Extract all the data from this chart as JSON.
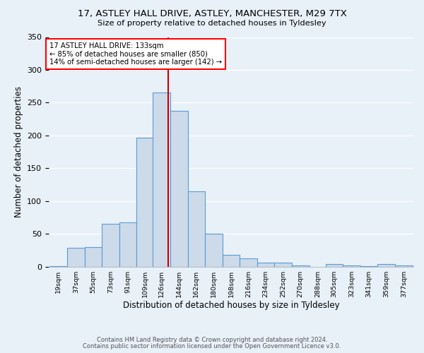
{
  "title_line1": "17, ASTLEY HALL DRIVE, ASTLEY, MANCHESTER, M29 7TX",
  "title_line2": "Size of property relative to detached houses in Tyldesley",
  "xlabel": "Distribution of detached houses by size in Tyldesley",
  "ylabel": "Number of detached properties",
  "bar_labels": [
    "19sqm",
    "37sqm",
    "55sqm",
    "73sqm",
    "91sqm",
    "109sqm",
    "126sqm",
    "144sqm",
    "162sqm",
    "180sqm",
    "198sqm",
    "216sqm",
    "234sqm",
    "252sqm",
    "270sqm",
    "288sqm",
    "305sqm",
    "323sqm",
    "341sqm",
    "359sqm",
    "377sqm"
  ],
  "bar_centers": [
    19,
    37,
    55,
    73,
    91,
    109,
    126,
    144,
    162,
    180,
    198,
    216,
    234,
    252,
    270,
    288,
    305,
    323,
    341,
    359,
    377
  ],
  "bar_values": [
    1,
    29,
    30,
    65,
    67,
    197,
    265,
    238,
    115,
    50,
    18,
    12,
    6,
    6,
    2,
    0,
    4,
    2,
    1,
    4,
    2
  ],
  "bar_color": "#ccdaea",
  "bar_edge_color": "#5b9bd5",
  "vline_x": 133,
  "vline_color": "#cc0000",
  "annotation_text": "17 ASTLEY HALL DRIVE: 133sqm\n← 85% of detached houses are smaller (850)\n14% of semi-detached houses are larger (142) →",
  "annotation_box_color": "white",
  "annotation_border_color": "red",
  "ylim": [
    0,
    350
  ],
  "yticks": [
    0,
    50,
    100,
    150,
    200,
    250,
    300,
    350
  ],
  "background_color": "#e8f0f8",
  "grid_color": "white",
  "footer_line1": "Contains HM Land Registry data © Crown copyright and database right 2024.",
  "footer_line2": "Contains public sector information licensed under the Open Government Licence v3.0.",
  "bin_width": 18
}
